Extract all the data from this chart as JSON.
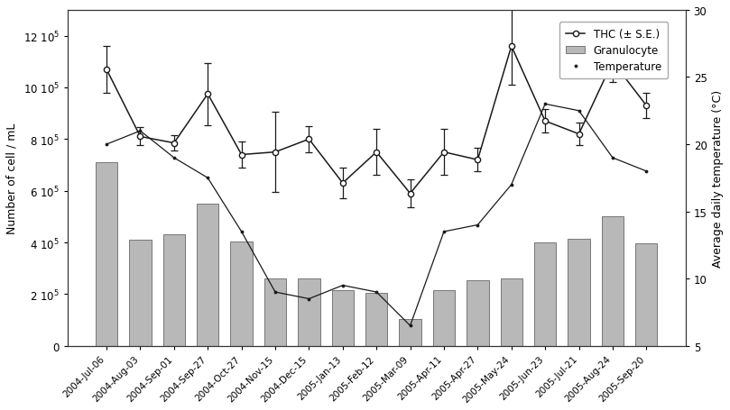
{
  "x_labels": [
    "2004-Jul-06",
    "2004-Aug-03",
    "2004-Sep-01",
    "2004-Sep-27",
    "2004-Oct-27",
    "2004-Nov-15",
    "2004-Dec-15",
    "2005-Jan-13",
    "2005-Feb-12",
    "2005-Mar-09",
    "2005-Apr-11",
    "2005-Apr-27",
    "2005-May-24",
    "2005-Jun-23",
    "2005-Jul-21",
    "2005-Aug-24",
    "2005-Sep-20"
  ],
  "thc": [
    1070000.0,
    810000.0,
    785000.0,
    975000.0,
    740000.0,
    750000.0,
    800000.0,
    630000.0,
    750000.0,
    590000.0,
    750000.0,
    720000.0,
    1160000.0,
    870000.0,
    820000.0,
    1100000.0,
    930000.0
  ],
  "thc_err": [
    90000.0,
    35000.0,
    30000.0,
    120000.0,
    50000.0,
    155000.0,
    50000.0,
    60000.0,
    90000.0,
    55000.0,
    90000.0,
    45000.0,
    150000.0,
    45000.0,
    45000.0,
    80000.0,
    50000.0
  ],
  "granulocyte": [
    710000.0,
    410000.0,
    430000.0,
    550000.0,
    405000.0,
    260000.0,
    260000.0,
    215000.0,
    205000.0,
    105000.0,
    215000.0,
    255000.0,
    260000.0,
    400000.0,
    415000.0,
    500000.0,
    395000.0
  ],
  "temperature": [
    20.0,
    21.0,
    19.0,
    17.5,
    13.5,
    9.0,
    8.5,
    9.5,
    9.0,
    6.5,
    13.5,
    14.0,
    17.0,
    23.0,
    22.5,
    19.0,
    18.0
  ],
  "bar_color": "#b8b8b8",
  "bar_edge_color": "#666666",
  "thc_line_color": "#1a1a1a",
  "temp_line_color": "#1a1a1a",
  "background_color": "#ffffff",
  "ylim_left": [
    0,
    1300000.0
  ],
  "ylim_right": [
    5,
    30
  ],
  "yticks_left": [
    0,
    200000.0,
    400000.0,
    600000.0,
    800000.0,
    1000000.0,
    1200000.0
  ],
  "ytick_labels_left": [
    "0",
    "2 10$^5$",
    "4 10$^5$",
    "6 10$^5$",
    "8 10$^5$",
    "10 10$^5$",
    "12 10$^5$"
  ],
  "yticks_right": [
    5,
    10,
    15,
    20,
    25,
    30
  ],
  "ylabel_left": "Number of cell / mL",
  "ylabel_right": "Average daily temperature (°C)",
  "legend_thc": "THC (± S.E.)",
  "legend_granulocyte": "Granulocyte",
  "legend_temp": "Temperature"
}
